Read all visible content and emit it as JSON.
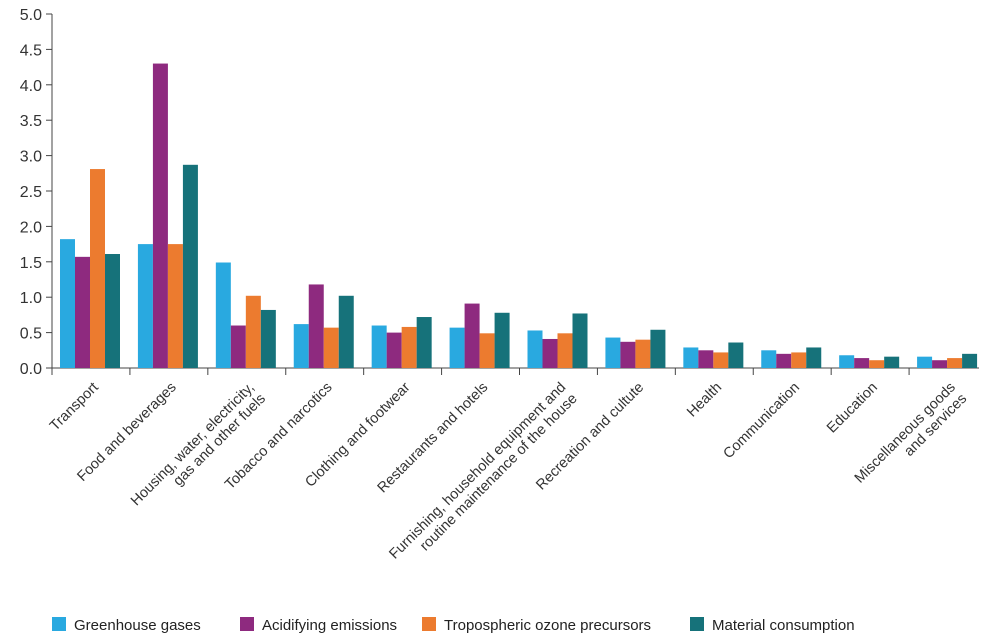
{
  "chart_data": {
    "type": "bar",
    "title": "",
    "xlabel": "",
    "ylabel": "",
    "ylim": [
      0,
      5.0
    ],
    "y_ticks": [
      "0.0",
      "0.5",
      "1.0",
      "1.5",
      "2.0",
      "2.5",
      "3.0",
      "3.5",
      "4.0",
      "4.5",
      "5.0"
    ],
    "grid": false,
    "legend_position": "bottom",
    "categories": [
      [
        "Transport"
      ],
      [
        "Food and beverages"
      ],
      [
        "Housing, water, electricity,",
        "gas and other fuels"
      ],
      [
        "Tobacco and narcotics"
      ],
      [
        "Clothing and footwear"
      ],
      [
        "Restaurants and hotels"
      ],
      [
        "Furnishing, household equipment and",
        "routine maintenance of the house"
      ],
      [
        "Recreation and cultute"
      ],
      [
        "Health"
      ],
      [
        "Communication"
      ],
      [
        "Education"
      ],
      [
        "Miscellaneous goods",
        "and services"
      ]
    ],
    "series": [
      {
        "name": "Greenhouse gases",
        "color": "#29a9e0",
        "values": [
          1.82,
          1.75,
          1.49,
          0.62,
          0.6,
          0.57,
          0.53,
          0.43,
          0.29,
          0.25,
          0.18,
          0.16
        ]
      },
      {
        "name": "Acidifying emissions",
        "color": "#8e2a7f",
        "values": [
          1.57,
          4.3,
          0.6,
          1.18,
          0.5,
          0.91,
          0.41,
          0.37,
          0.25,
          0.2,
          0.14,
          0.11
        ]
      },
      {
        "name": "Tropospheric ozone precursors",
        "color": "#ec7b2f",
        "values": [
          2.81,
          1.75,
          1.02,
          0.57,
          0.58,
          0.49,
          0.49,
          0.4,
          0.22,
          0.22,
          0.11,
          0.14
        ]
      },
      {
        "name": "Material consumption",
        "color": "#16727a",
        "values": [
          1.61,
          2.87,
          0.82,
          1.02,
          0.72,
          0.78,
          0.77,
          0.54,
          0.36,
          0.29,
          0.16,
          0.2
        ]
      }
    ]
  }
}
